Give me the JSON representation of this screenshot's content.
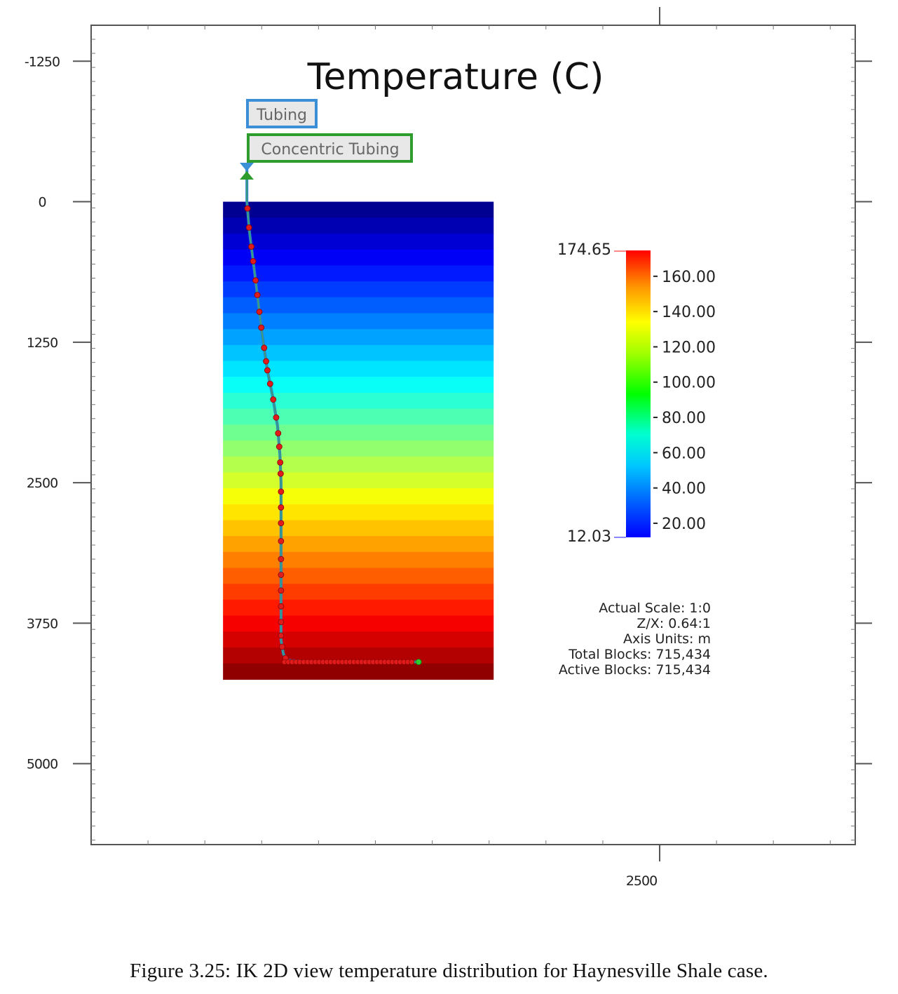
{
  "figure": {
    "title": "Temperature (C)",
    "caption": "Figure 3.25:  IK 2D view temperature distribution for Haynesville Shale case.",
    "well_labels": [
      {
        "text": "Tubing",
        "color": "#3a8fd6"
      },
      {
        "text": "Concentric Tubing",
        "color": "#2e9d2e"
      }
    ],
    "info": [
      "Actual Scale: 1:0",
      "Z/X: 0.64:1",
      "Axis Units: m",
      "Total Blocks: 715,434",
      "Active Blocks: 715,434"
    ],
    "colors": {
      "frame": "#555555",
      "tubing": "#3a8fd6",
      "concentric_tubing": "#2e9d2e",
      "perforation": "#e01b1b",
      "toe_marker": "#2ecc2e"
    }
  },
  "chart_data": {
    "type": "heatmap",
    "title": "Temperature (C)",
    "y_axis": {
      "label": "",
      "ticks": [
        "-1250",
        "0",
        "1250",
        "2500",
        "3750",
        "5000"
      ],
      "tick_values": [
        -1250,
        0,
        1250,
        2500,
        3750,
        5000
      ],
      "range": [
        -1570,
        5720
      ],
      "direction": "down"
    },
    "x_axis": {
      "label": "",
      "ticks": [
        "2500"
      ],
      "tick_values": [
        2500
      ],
      "range": [
        -2500,
        4220
      ]
    },
    "grid_extent": {
      "x": [
        -1340,
        1040
      ],
      "depth": [
        0,
        4250
      ]
    },
    "colorbar": {
      "min": 12.03,
      "max": 174.65,
      "min_label": "12.03",
      "max_label": "174.65",
      "ticks": [
        "160.00",
        "140.00",
        "120.00",
        "100.00",
        "80.00",
        "60.00",
        "40.00",
        "20.00"
      ],
      "tick_values": [
        160,
        140,
        120,
        100,
        80,
        60,
        40,
        20
      ],
      "colormap": "jet"
    },
    "temperature_profile": {
      "depth": [
        0,
        4250
      ],
      "temperature": [
        12.03,
        174.65
      ],
      "layers": 30
    },
    "well_trajectory": {
      "x": [
        -1130,
        -1130,
        -1110,
        -1060,
        -1000,
        -950,
        -900,
        -860,
        -840,
        -830,
        -830,
        -830,
        -830,
        -830,
        -830,
        -810,
        -780,
        -620,
        -300,
        80,
        380
      ],
      "depth": [
        -330,
        0,
        250,
        650,
        1150,
        1500,
        1750,
        2000,
        2250,
        2500,
        2900,
        3300,
        3600,
        3800,
        3900,
        4020,
        4080,
        4090,
        4095,
        4095,
        4095
      ]
    },
    "perforation_depth_samples": [
      60,
      230,
      400,
      530,
      700,
      830,
      980,
      1120,
      1300,
      1420,
      1500,
      1620,
      1760,
      1920,
      2060,
      2180,
      2320,
      2420,
      2580,
      2720,
      2860,
      3020,
      3180,
      3320,
      3460,
      3600,
      3740,
      3860,
      3960,
      4060
    ]
  }
}
